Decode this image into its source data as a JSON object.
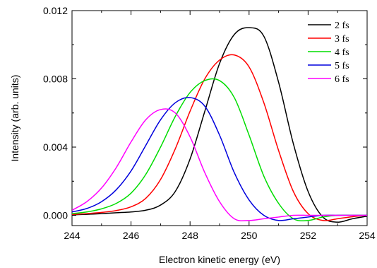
{
  "chart_data": {
    "type": "line",
    "xlabel": "Electron kinetic energy (eV)",
    "ylabel": "Intensity (arb. units)",
    "xlim": [
      244,
      254
    ],
    "ylim": [
      -0.0006,
      0.012
    ],
    "x_ticks": [
      244,
      246,
      248,
      250,
      252,
      254
    ],
    "x_tick_labels": [
      "244",
      "246",
      "248",
      "250",
      "252",
      "254"
    ],
    "y_ticks": [
      0.0,
      0.004,
      0.008,
      0.012
    ],
    "y_tick_labels": [
      "0.000",
      "0.004",
      "0.008",
      "0.012"
    ],
    "grid": false,
    "legend_position": "top-right",
    "x": [
      244.0,
      244.5,
      245.0,
      245.5,
      246.0,
      246.5,
      247.0,
      247.5,
      248.0,
      248.5,
      249.0,
      249.5,
      250.0,
      250.5,
      251.0,
      251.5,
      252.0,
      252.5,
      253.0,
      253.5,
      254.0
    ],
    "series": [
      {
        "name": "2 fs",
        "color": "#000000",
        "values": [
          3e-05,
          6e-05,
          0.0001,
          0.00015,
          0.0002,
          0.0003,
          0.0006,
          0.0014,
          0.0033,
          0.0061,
          0.0089,
          0.0106,
          0.011,
          0.0105,
          0.0078,
          0.0042,
          0.0014,
          -0.0001,
          -0.0004,
          -0.0002,
          -5e-05
        ]
      },
      {
        "name": "3 fs",
        "color": "#ff0000",
        "values": [
          5e-05,
          0.0001,
          0.00017,
          0.00028,
          0.0005,
          0.001,
          0.0021,
          0.0039,
          0.0061,
          0.008,
          0.0091,
          0.0094,
          0.0087,
          0.0066,
          0.0038,
          0.0014,
          0.0001,
          -0.0003,
          -0.0002,
          -8e-05,
          0.0
        ]
      },
      {
        "name": "4 fs",
        "color": "#00dd00",
        "values": [
          0.0001,
          0.0002,
          0.00038,
          0.0007,
          0.0013,
          0.0024,
          0.004,
          0.0058,
          0.0072,
          0.0079,
          0.0079,
          0.0069,
          0.0047,
          0.0023,
          0.0007,
          -0.0002,
          -0.0003,
          -0.0001,
          0.0,
          0.0,
          0.0
        ]
      },
      {
        "name": "5 fs",
        "color": "#0000dd",
        "values": [
          0.0002,
          0.0004,
          0.0008,
          0.0015,
          0.0026,
          0.0041,
          0.0056,
          0.0066,
          0.0069,
          0.0064,
          0.0047,
          0.0025,
          0.0009,
          0.0,
          -0.0003,
          -0.0002,
          -0.0001,
          0.0,
          0.0,
          0.0,
          0.0
        ]
      },
      {
        "name": "6 fs",
        "color": "#ff00ff",
        "values": [
          0.0003,
          0.0008,
          0.0016,
          0.0028,
          0.0043,
          0.0056,
          0.0062,
          0.006,
          0.0046,
          0.0025,
          0.0008,
          -0.0002,
          -0.0003,
          -0.0002,
          -0.0001,
          0.0,
          0.0,
          0.0,
          0.0,
          0.0,
          0.0
        ]
      }
    ]
  }
}
